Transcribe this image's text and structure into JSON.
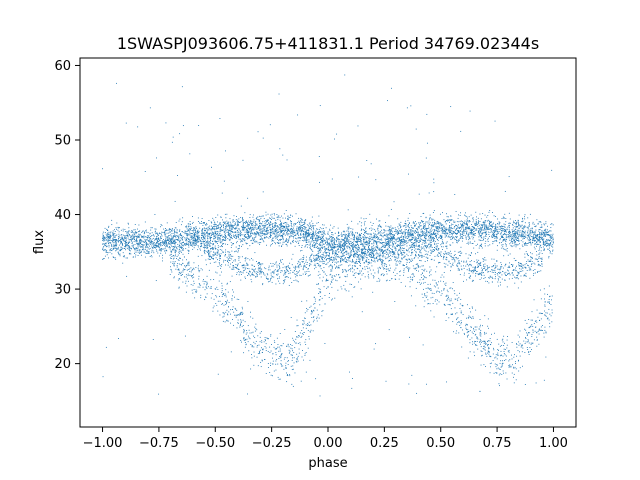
{
  "chart_data": {
    "type": "scatter",
    "title": "1SWASPJ093606.75+411831.1 Period 34769.02344s",
    "xlabel": "phase",
    "ylabel": "flux",
    "xlim": [
      -1.1,
      1.1
    ],
    "ylim": [
      11.5,
      61
    ],
    "xticks": [
      "−1.00",
      "−0.75",
      "−0.50",
      "−0.25",
      "0.00",
      "0.25",
      "0.50",
      "0.75",
      "1.00"
    ],
    "xtick_values": [
      -1.0,
      -0.75,
      -0.5,
      -0.25,
      0.0,
      0.25,
      0.5,
      0.75,
      1.0
    ],
    "yticks": [
      "20",
      "30",
      "40",
      "50",
      "60"
    ],
    "ytick_values": [
      20,
      30,
      40,
      50,
      60
    ],
    "grid": false,
    "color": "#1f77b4",
    "series": [
      {
        "description": "main flux band (phase-folded, repeated for phase -1..0 and 0..1)",
        "x": [
          -1.0,
          -0.9,
          -0.8,
          -0.7,
          -0.6,
          -0.5,
          -0.4,
          -0.3,
          -0.2,
          -0.1,
          0.0,
          0.1,
          0.2,
          0.3,
          0.4,
          0.5,
          0.6,
          0.7,
          0.8,
          0.9,
          1.0
        ],
        "y": [
          36.5,
          36.5,
          36.3,
          36.5,
          37.0,
          37.5,
          37.8,
          38.0,
          37.8,
          37.5,
          36.0,
          36.3,
          36.5,
          37.0,
          37.5,
          37.8,
          38.0,
          37.8,
          37.5,
          37.3,
          36.5
        ]
      },
      {
        "description": "secondary shallow dip branch",
        "x": [
          -0.55,
          -0.45,
          -0.35,
          -0.25,
          -0.15,
          -0.05,
          0.45,
          0.55,
          0.65,
          0.75,
          0.85,
          0.95
        ],
        "y": [
          35.5,
          34.0,
          32.8,
          32.2,
          32.5,
          34.0,
          35.5,
          34.0,
          32.8,
          32.2,
          32.5,
          34.0
        ]
      },
      {
        "description": "deep eclipse branch",
        "x": [
          -0.7,
          -0.5,
          -0.35,
          -0.25,
          -0.18,
          -0.1,
          0.0,
          0.3,
          0.5,
          0.65,
          0.75,
          0.82,
          0.9,
          1.0
        ],
        "y": [
          34.0,
          30.0,
          24.0,
          21.0,
          20.5,
          24.0,
          32.0,
          34.0,
          30.0,
          24.0,
          21.0,
          20.5,
          24.0,
          28.0
        ]
      }
    ]
  }
}
